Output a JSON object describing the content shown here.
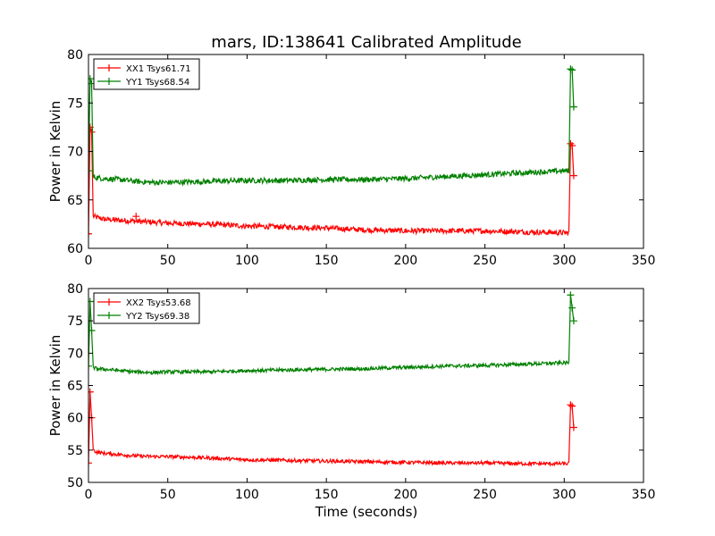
{
  "figure": {
    "title": "mars, ID:138641 Calibrated Amplitude",
    "xlabel": "Time (seconds)"
  },
  "chart_data": [
    {
      "type": "line",
      "ylabel": "Power in Kelvin",
      "xlim": [
        0,
        350
      ],
      "ylim": [
        60,
        80
      ],
      "xticks": [
        "0",
        "50",
        "100",
        "150",
        "200",
        "250",
        "300",
        "350"
      ],
      "yticks": [
        "60",
        "65",
        "70",
        "75",
        "80"
      ],
      "legend_position": "upper-left",
      "grid": false,
      "series": [
        {
          "name": "XX1 Tsys61.71",
          "color": "#ff0000",
          "marker": "+",
          "x": [
            0,
            1,
            2,
            3,
            5,
            10,
            20,
            30,
            40,
            50,
            75,
            100,
            125,
            150,
            175,
            200,
            225,
            250,
            275,
            300,
            303,
            304,
            305,
            306
          ],
          "y": [
            61.5,
            72.5,
            72.0,
            63.3,
            63.2,
            63.0,
            62.9,
            62.8,
            62.7,
            62.6,
            62.5,
            62.3,
            62.2,
            62.1,
            61.9,
            61.8,
            61.8,
            61.8,
            61.7,
            61.6,
            61.6,
            70.8,
            70.6,
            67.5
          ],
          "outliers": [
            [
              30,
              63.3
            ]
          ]
        },
        {
          "name": "YY1 Tsys68.54",
          "color": "#008000",
          "marker": "+",
          "x": [
            0,
            1,
            2,
            3,
            5,
            10,
            20,
            30,
            40,
            50,
            75,
            100,
            125,
            150,
            175,
            200,
            225,
            250,
            275,
            300,
            303,
            304,
            305,
            306
          ],
          "y": [
            68.0,
            77.5,
            77.0,
            67.4,
            67.3,
            67.2,
            67.1,
            66.9,
            66.8,
            66.8,
            66.9,
            67.0,
            67.0,
            67.1,
            67.1,
            67.2,
            67.4,
            67.6,
            67.8,
            68.0,
            68.0,
            78.5,
            78.4,
            74.6
          ]
        }
      ]
    },
    {
      "type": "line",
      "ylabel": "Power in Kelvin",
      "xlim": [
        0,
        350
      ],
      "ylim": [
        50,
        80
      ],
      "xticks": [
        "0",
        "50",
        "100",
        "150",
        "200",
        "250",
        "300",
        "350"
      ],
      "yticks": [
        "50",
        "55",
        "60",
        "65",
        "70",
        "75",
        "80"
      ],
      "legend_position": "upper-left",
      "grid": false,
      "series": [
        {
          "name": "XX2 Tsys53.68",
          "color": "#ff0000",
          "marker": "+",
          "x": [
            0,
            1,
            2,
            3,
            5,
            10,
            20,
            30,
            40,
            50,
            75,
            100,
            125,
            150,
            175,
            200,
            225,
            250,
            275,
            300,
            303,
            304,
            305,
            306
          ],
          "y": [
            53.0,
            64.0,
            60.0,
            55.0,
            54.7,
            54.5,
            54.3,
            54.1,
            54.0,
            54.0,
            53.8,
            53.5,
            53.4,
            53.3,
            53.2,
            53.1,
            53.0,
            53.0,
            52.9,
            52.9,
            52.9,
            62.0,
            61.8,
            58.5
          ]
        },
        {
          "name": "YY2 Tsys69.38",
          "color": "#008000",
          "marker": "+",
          "x": [
            0,
            1,
            2,
            3,
            5,
            10,
            20,
            30,
            40,
            50,
            75,
            100,
            125,
            150,
            175,
            200,
            225,
            250,
            275,
            300,
            303,
            304,
            305,
            306
          ],
          "y": [
            68.0,
            78.0,
            73.5,
            67.8,
            67.6,
            67.5,
            67.3,
            67.1,
            67.0,
            67.1,
            67.1,
            67.3,
            67.4,
            67.5,
            67.6,
            67.8,
            68.0,
            68.1,
            68.3,
            68.5,
            68.5,
            79.0,
            77.0,
            75.0
          ]
        }
      ]
    }
  ]
}
